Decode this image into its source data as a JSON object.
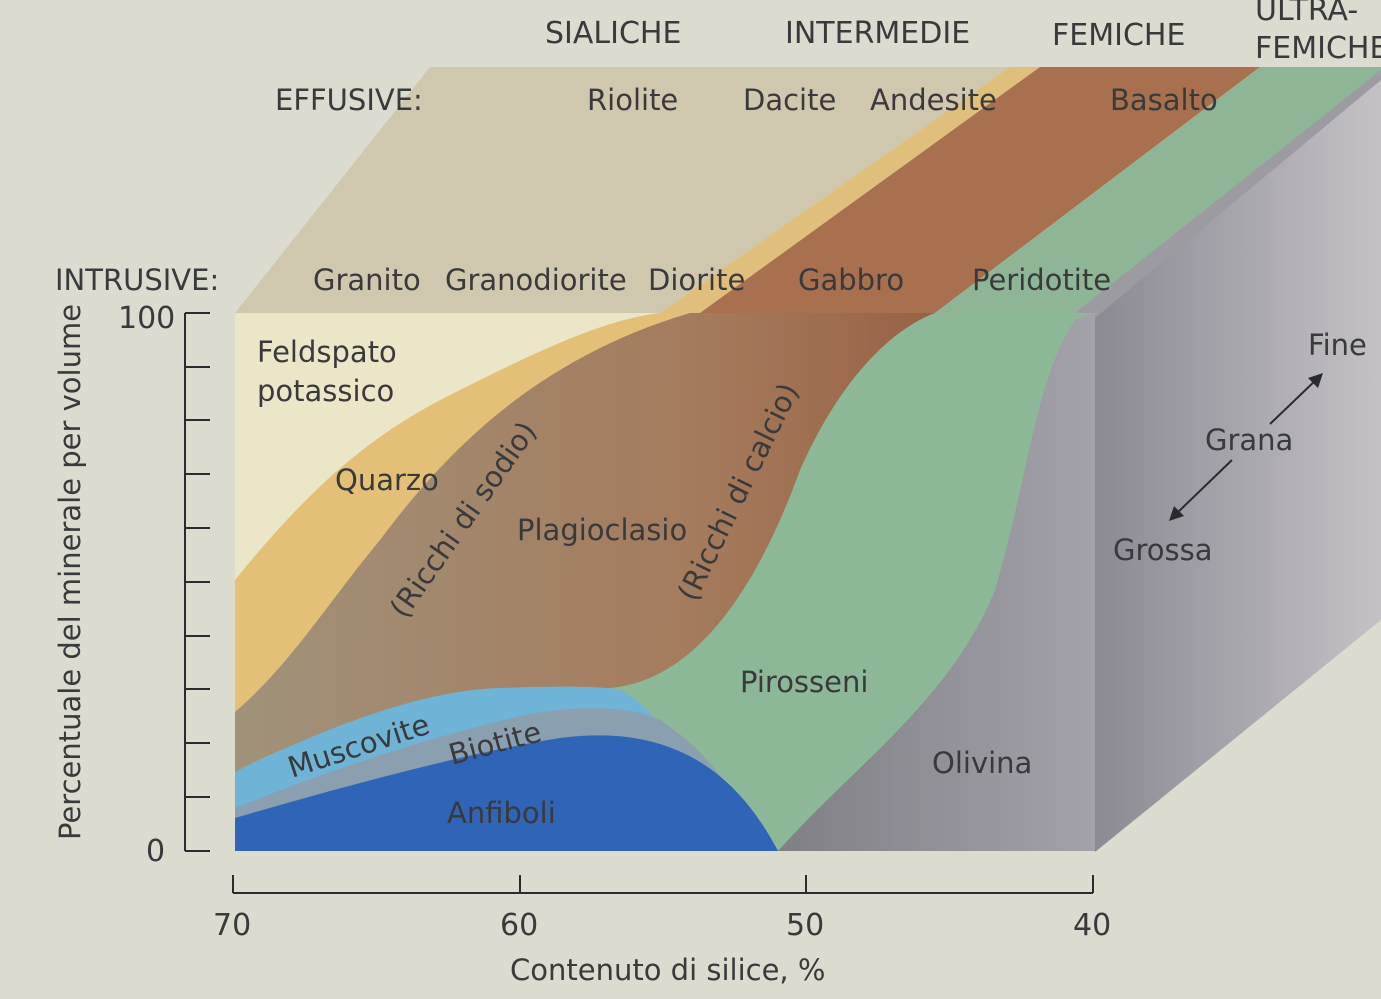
{
  "categories": {
    "sialiche": "SIALICHE",
    "intermedie": "INTERMEDIE",
    "femiche": "FEMICHE",
    "ultrafemiche_line1": "ULTRA-",
    "ultrafemiche_line2": "FEMICHE"
  },
  "effusive": {
    "label": "EFFUSIVE:",
    "rocks": [
      "Riolite",
      "Dacite",
      "Andesite",
      "Basalto"
    ]
  },
  "intrusive": {
    "label": "INTRUSIVE:",
    "rocks": [
      "Granito",
      "Granodiorite",
      "Diorite",
      "Gabbro",
      "Peridotite"
    ]
  },
  "minerals": {
    "feldspato_line1": "Feldspato",
    "feldspato_line2": "potassico",
    "quarzo": "Quarzo",
    "plagioclasio": "Plagioclasio",
    "ricchi_sodio": "(Ricchi di sodio)",
    "ricchi_calcio": "(Ricchi di calcio)",
    "muscovite": "Muscovite",
    "biotite": "Biotite",
    "anfiboli": "Anfiboli",
    "pirosseni": "Pirosseni",
    "olivina": "Olivina"
  },
  "grain": {
    "fine": "Fine",
    "grana": "Grana",
    "grossa": "Grossa"
  },
  "axes": {
    "ylabel": "Percentuale del minerale per volume",
    "ytick_top": "100",
    "ytick_bottom": "0",
    "xlabel": "Contenuto di silice, %",
    "xticks": [
      "70",
      "60",
      "50",
      "40"
    ]
  },
  "colors": {
    "background": "#dcdbcf",
    "feldspato": "#ece6c9",
    "quarzo": "#e3bf78",
    "plagioclasio": "#a8896c",
    "plagioclasio_calcico": "#9c5f3e",
    "pirosseni": "#8cb898",
    "olivina": "#86858c",
    "muscovite": "#6fb3d6",
    "biotite": "#8a9fb0",
    "anfiboli": "#2f64b7",
    "side_face": "#a09ea6",
    "top_face": "#cfc8b4"
  }
}
